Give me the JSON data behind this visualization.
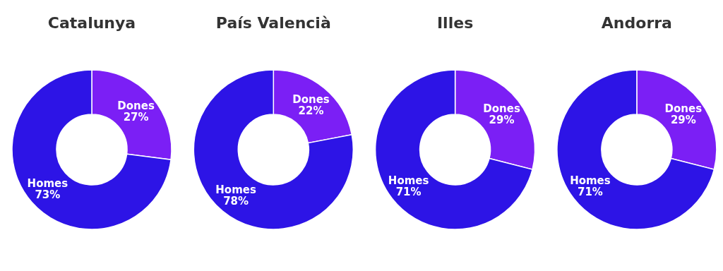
{
  "chart_data": [
    {
      "type": "donut",
      "title": "Catalunya",
      "categories": [
        "Dones",
        "Homes"
      ],
      "values": [
        27,
        73
      ],
      "value_labels": [
        "27%",
        "73%"
      ],
      "colors": [
        "#7b1ff5",
        "#2d14e6"
      ]
    },
    {
      "type": "donut",
      "title": "País Valencià",
      "categories": [
        "Dones",
        "Homes"
      ],
      "values": [
        22,
        78
      ],
      "value_labels": [
        "22%",
        "78%"
      ],
      "colors": [
        "#7b1ff5",
        "#2d14e6"
      ]
    },
    {
      "type": "donut",
      "title": "Illes",
      "categories": [
        "Dones",
        "Homes"
      ],
      "values": [
        29,
        71
      ],
      "value_labels": [
        "29%",
        "71%"
      ],
      "colors": [
        "#7b1ff5",
        "#2d14e6"
      ]
    },
    {
      "type": "donut",
      "title": "Andorra",
      "categories": [
        "Dones",
        "Homes"
      ],
      "values": [
        29,
        71
      ],
      "value_labels": [
        "29%",
        "71%"
      ],
      "colors": [
        "#7b1ff5",
        "#2d14e6"
      ]
    }
  ]
}
